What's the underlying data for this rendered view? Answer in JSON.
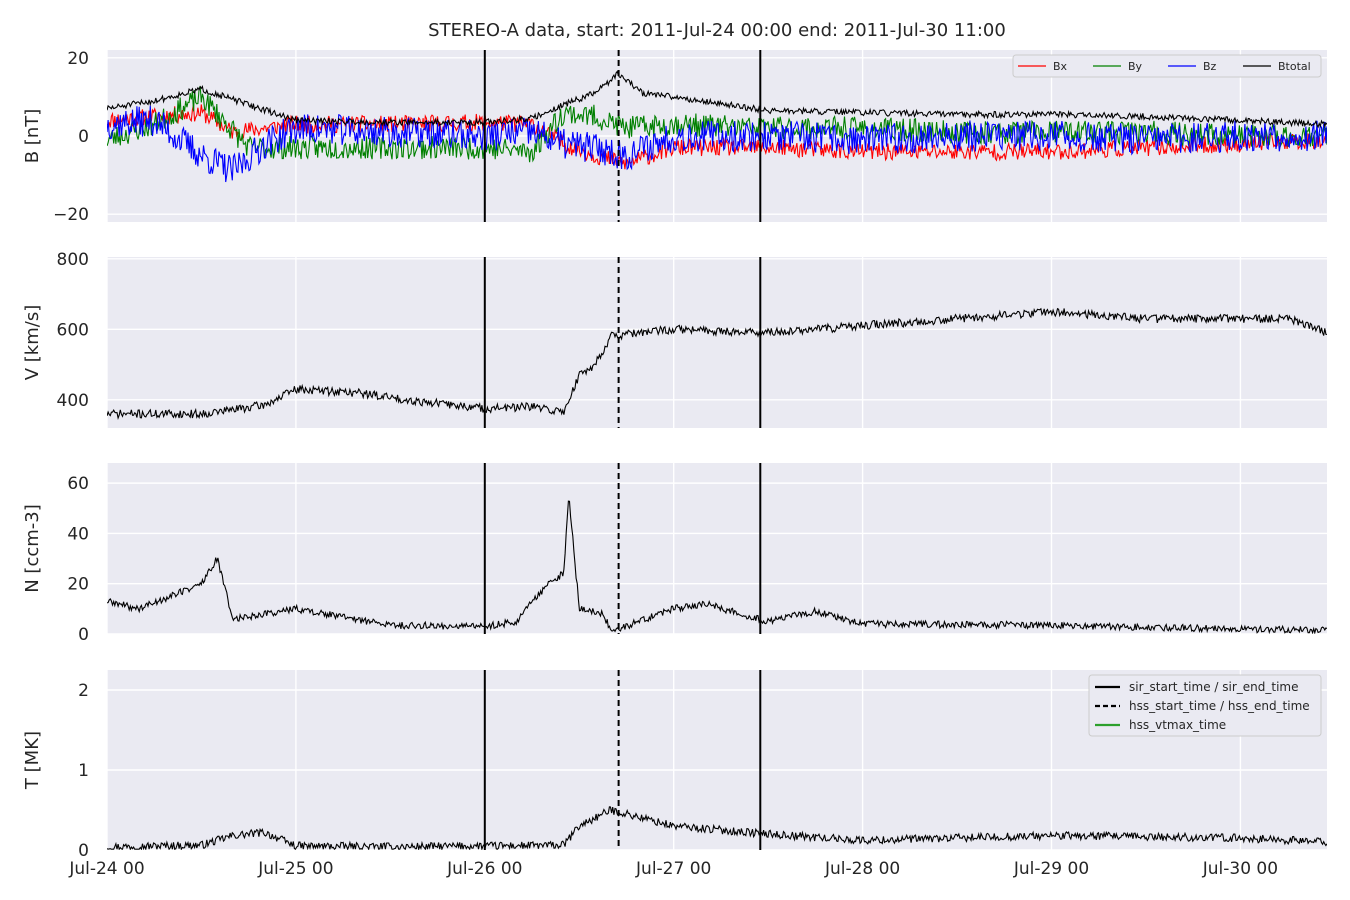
{
  "title": "STEREO-A data, start: 2011-Jul-24 00:00  end: 2011-Jul-30 11:00",
  "colors": {
    "panel_bg": "#eaeaf2",
    "grid": "#ffffff",
    "Bx": "#ff0000",
    "By": "#008000",
    "Bz": "#0000ff",
    "Btotal": "#000000",
    "event_line": "#000000",
    "hss_vtmax": "#2ca02c"
  },
  "chart_data": [
    {
      "type": "line",
      "id": "B",
      "title": "STEREO-A data, start: 2011-Jul-24 00:00  end: 2011-Jul-30 11:00",
      "xlabel": "",
      "ylabel": "B [nT]",
      "xlim": [
        "2011-07-24 00:00",
        "2011-07-30 11:00"
      ],
      "ylim": [
        -22,
        22
      ],
      "yticks": [
        -20,
        0,
        20
      ],
      "ytick_labels": [
        "−20",
        "0",
        "20"
      ],
      "xticks": [
        "2011-07-25 00:00",
        "2011-07-26 00:00",
        "2011-07-27 00:00",
        "2011-07-28 00:00",
        "2011-07-29 00:00",
        "2011-07-30 00:00"
      ],
      "grid": true,
      "legend_placement": "top-right",
      "series": [
        {
          "name": "Bx",
          "color": "#ff0000",
          "noise": 2.2,
          "seed": 11,
          "x": [
            "2011-07-24 00:00",
            "2011-07-24 06:00",
            "2011-07-24 12:00",
            "2011-07-24 16:00",
            "2011-07-24 20:00",
            "2011-07-25 00:00",
            "2011-07-25 12:00",
            "2011-07-26 00:00",
            "2011-07-26 06:00",
            "2011-07-26 10:00",
            "2011-07-26 14:00",
            "2011-07-26 18:00",
            "2011-07-27 00:00",
            "2011-07-27 12:00",
            "2011-07-28 00:00",
            "2011-07-28 12:00",
            "2011-07-29 00:00",
            "2011-07-29 12:00",
            "2011-07-30 00:00",
            "2011-07-30 11:00"
          ],
          "y": [
            4,
            5,
            6,
            1,
            2,
            3,
            3,
            3.5,
            3,
            -2,
            -5,
            -7,
            -3,
            -3,
            -4,
            -4,
            -4,
            -3,
            -2,
            -1
          ]
        },
        {
          "name": "By",
          "color": "#008000",
          "noise": 3.0,
          "seed": 23,
          "x": [
            "2011-07-24 00:00",
            "2011-07-24 06:00",
            "2011-07-24 12:00",
            "2011-07-24 18:00",
            "2011-07-25 00:00",
            "2011-07-25 12:00",
            "2011-07-26 00:00",
            "2011-07-26 06:00",
            "2011-07-26 10:00",
            "2011-07-26 14:00",
            "2011-07-26 18:00",
            "2011-07-27 00:00",
            "2011-07-27 12:00",
            "2011-07-28 00:00",
            "2011-07-28 12:00",
            "2011-07-29 00:00",
            "2011-07-29 12:00",
            "2011-07-30 00:00",
            "2011-07-30 11:00"
          ],
          "y": [
            -1,
            3,
            10,
            -3,
            -3,
            -3,
            -3,
            -4,
            6,
            5,
            2,
            3,
            2,
            2,
            1,
            1,
            1,
            0,
            0
          ]
        },
        {
          "name": "Bz",
          "color": "#0000ff",
          "noise": 4.0,
          "seed": 37,
          "x": [
            "2011-07-24 00:00",
            "2011-07-24 06:00",
            "2011-07-24 12:00",
            "2011-07-24 16:00",
            "2011-07-24 20:00",
            "2011-07-25 00:00",
            "2011-07-25 12:00",
            "2011-07-26 00:00",
            "2011-07-26 06:00",
            "2011-07-26 10:00",
            "2011-07-26 14:00",
            "2011-07-26 18:00",
            "2011-07-27 00:00",
            "2011-07-27 12:00",
            "2011-07-28 00:00",
            "2011-07-28 12:00",
            "2011-07-29 00:00",
            "2011-07-29 12:00",
            "2011-07-30 00:00",
            "2011-07-30 11:00"
          ],
          "y": [
            3,
            4,
            -5,
            -9,
            -2,
            2,
            1,
            0,
            1,
            -2,
            -3,
            -5,
            0,
            0,
            -1,
            0,
            0,
            -1,
            0,
            0
          ]
        },
        {
          "name": "Btotal",
          "color": "#000000",
          "noise": 0.8,
          "seed": 51,
          "x": [
            "2011-07-24 00:00",
            "2011-07-24 06:00",
            "2011-07-24 12:00",
            "2011-07-24 18:00",
            "2011-07-25 00:00",
            "2011-07-25 12:00",
            "2011-07-26 00:00",
            "2011-07-26 06:00",
            "2011-07-26 10:00",
            "2011-07-26 14:00",
            "2011-07-26 17:00",
            "2011-07-26 20:00",
            "2011-07-27 00:00",
            "2011-07-27 12:00",
            "2011-07-28 00:00",
            "2011-07-28 12:00",
            "2011-07-29 00:00",
            "2011-07-29 12:00",
            "2011-07-30 00:00",
            "2011-07-30 11:00"
          ],
          "y": [
            7,
            9,
            12,
            8,
            4,
            3.5,
            3.5,
            4.5,
            8,
            11,
            16,
            11,
            10,
            6.5,
            6,
            5.5,
            5.5,
            5,
            4,
            3
          ]
        }
      ]
    },
    {
      "type": "line",
      "id": "V",
      "xlabel": "",
      "ylabel": "V [km/s]",
      "xlim": [
        "2011-07-24 00:00",
        "2011-07-30 11:00"
      ],
      "ylim": [
        320,
        805
      ],
      "yticks": [
        400,
        600,
        800
      ],
      "ytick_labels": [
        "400",
        "600",
        "800"
      ],
      "grid": true,
      "series": [
        {
          "name": "",
          "color": "#000000",
          "noise": 12,
          "seed": 71,
          "x": [
            "2011-07-24 00:00",
            "2011-07-24 12:00",
            "2011-07-24 20:00",
            "2011-07-25 00:00",
            "2011-07-25 08:00",
            "2011-07-25 14:00",
            "2011-07-26 00:00",
            "2011-07-26 06:00",
            "2011-07-26 10:00",
            "2011-07-26 12:00",
            "2011-07-26 14:00",
            "2011-07-26 16:00",
            "2011-07-27 00:00",
            "2011-07-27 12:00",
            "2011-07-28 00:00",
            "2011-07-28 12:00",
            "2011-07-29 00:00",
            "2011-07-29 12:00",
            "2011-07-30 00:00",
            "2011-07-30 06:00",
            "2011-07-30 11:00"
          ],
          "y": [
            360,
            360,
            385,
            430,
            420,
            400,
            375,
            380,
            365,
            470,
            500,
            580,
            600,
            590,
            610,
            630,
            650,
            630,
            630,
            630,
            590
          ]
        }
      ]
    },
    {
      "type": "line",
      "id": "N",
      "xlabel": "",
      "ylabel": "N [ccm-3]",
      "xlim": [
        "2011-07-24 00:00",
        "2011-07-30 11:00"
      ],
      "ylim": [
        0,
        68
      ],
      "yticks": [
        0,
        20,
        40,
        60
      ],
      "ytick_labels": [
        "0",
        "20",
        "40",
        "60"
      ],
      "grid": true,
      "series": [
        {
          "name": "",
          "color": "#000000",
          "noise": 1.4,
          "seed": 89,
          "x": [
            "2011-07-24 00:00",
            "2011-07-24 04:00",
            "2011-07-24 08:00",
            "2011-07-24 12:00",
            "2011-07-24 14:00",
            "2011-07-24 16:00",
            "2011-07-25 00:00",
            "2011-07-25 12:00",
            "2011-07-26 00:00",
            "2011-07-26 04:00",
            "2011-07-26 08:00",
            "2011-07-26 10:00",
            "2011-07-26 10:40",
            "2011-07-26 12:00",
            "2011-07-26 15:00",
            "2011-07-26 16:00",
            "2011-07-26 17:00",
            "2011-07-27 00:00",
            "2011-07-27 04:00",
            "2011-07-27 12:00",
            "2011-07-27 18:00",
            "2011-07-28 00:00",
            "2011-07-29 00:00",
            "2011-07-30 00:00",
            "2011-07-30 11:00"
          ],
          "y": [
            13,
            10,
            15,
            20,
            30,
            6,
            10,
            3.5,
            3,
            5,
            20,
            24,
            55,
            10,
            8,
            2,
            2,
            10,
            12,
            5,
            9,
            4,
            3.5,
            2,
            1.5
          ]
        }
      ]
    },
    {
      "type": "line",
      "id": "T",
      "xlabel": "",
      "ylabel": "T [MK]",
      "xlim": [
        "2011-07-24 00:00",
        "2011-07-30 11:00"
      ],
      "ylim": [
        0,
        2.25
      ],
      "yticks": [
        0,
        1,
        2
      ],
      "ytick_labels": [
        "0",
        "1",
        "2"
      ],
      "xticks": [
        "2011-07-24 00:00",
        "2011-07-25 00:00",
        "2011-07-26 00:00",
        "2011-07-27 00:00",
        "2011-07-28 00:00",
        "2011-07-29 00:00",
        "2011-07-30 00:00"
      ],
      "xtick_labels": [
        "Jul-24 00",
        "Jul-25 00",
        "Jul-26 00",
        "Jul-27 00",
        "Jul-28 00",
        "Jul-29 00",
        "Jul-30 00"
      ],
      "grid": true,
      "legend_placement": "top-right",
      "series": [
        {
          "name": "",
          "color": "#000000",
          "noise": 0.05,
          "seed": 97,
          "x": [
            "2011-07-24 00:00",
            "2011-07-24 12:00",
            "2011-07-24 16:00",
            "2011-07-24 20:00",
            "2011-07-25 00:00",
            "2011-07-25 12:00",
            "2011-07-26 00:00",
            "2011-07-26 10:00",
            "2011-07-26 12:00",
            "2011-07-26 16:00",
            "2011-07-27 00:00",
            "2011-07-27 12:00",
            "2011-07-28 00:00",
            "2011-07-29 00:00",
            "2011-07-30 00:00",
            "2011-07-30 11:00"
          ],
          "y": [
            0.04,
            0.06,
            0.18,
            0.22,
            0.05,
            0.04,
            0.05,
            0.06,
            0.3,
            0.5,
            0.3,
            0.2,
            0.12,
            0.18,
            0.15,
            0.1
          ]
        }
      ]
    }
  ],
  "event_lines": [
    {
      "name": "sir_start_time",
      "time": "2011-07-26 00:00",
      "style": "solid"
    },
    {
      "name": "hss_start_time",
      "time": "2011-07-26 17:00",
      "style": "dashed"
    },
    {
      "name": "sir_end_time",
      "time": "2011-07-27 11:00",
      "style": "solid"
    }
  ],
  "legend_B": [
    "Bx",
    "By",
    "Bz",
    "Btotal"
  ],
  "legend_events": [
    {
      "label": "sir_start_time / sir_end_time",
      "style": "solid",
      "color": "#000000"
    },
    {
      "label": "hss_start_time / hss_end_time",
      "style": "dashed",
      "color": "#000000"
    },
    {
      "label": "hss_vtmax_time",
      "style": "solid",
      "color": "#2ca02c"
    }
  ]
}
